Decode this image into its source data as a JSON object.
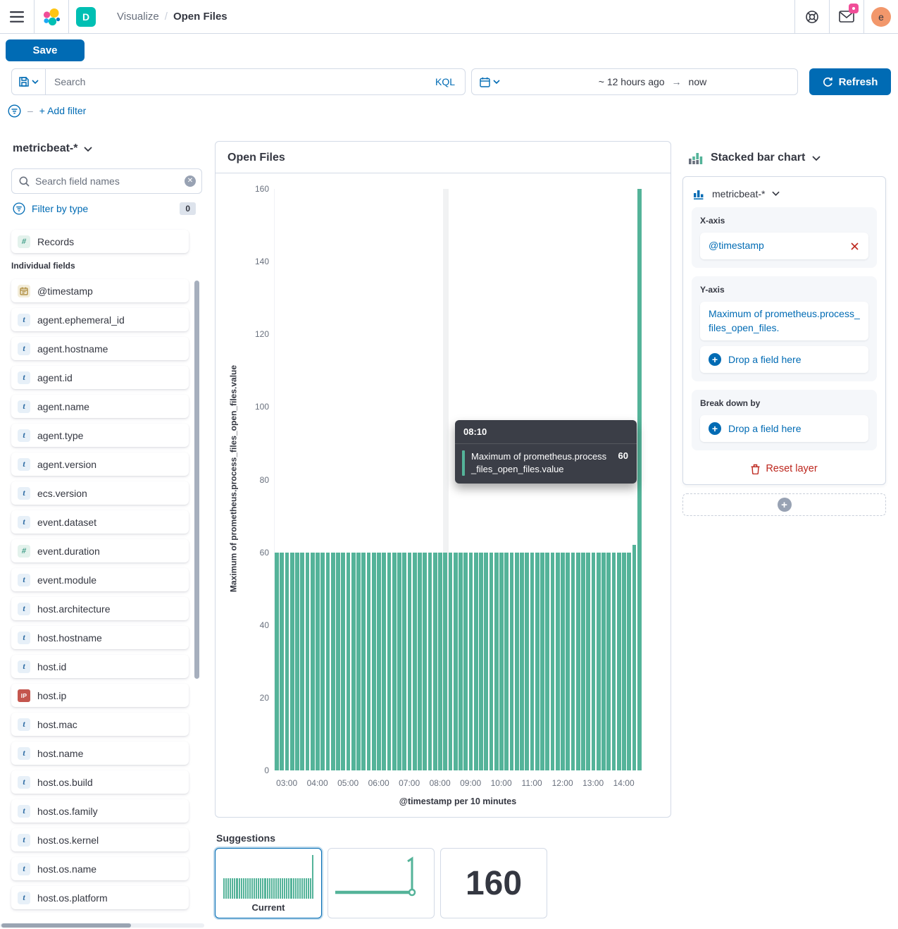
{
  "header": {
    "space_initial": "D",
    "breadcrumbs": [
      "Visualize",
      "Open Files"
    ],
    "breadcrumb_separator": "/",
    "avatar_initial": "e"
  },
  "toolbar": {
    "save_label": "Save",
    "search_placeholder": "Search",
    "kql_label": "KQL",
    "time_range": {
      "from": "~ 12 hours ago",
      "arrow": "→",
      "to": "now"
    },
    "refresh_label": "Refresh",
    "add_filter_dash": "–",
    "add_filter_label": "+ Add filter"
  },
  "sidebar": {
    "index_pattern": "metricbeat-*",
    "field_search_placeholder": "Search field names",
    "filter_by_type_label": "Filter by type",
    "filter_count": "0",
    "records_label": "Records",
    "section_label": "Individual fields",
    "fields": [
      {
        "name": "@timestamp",
        "type": "date"
      },
      {
        "name": "agent.ephemeral_id",
        "type": "string"
      },
      {
        "name": "agent.hostname",
        "type": "string"
      },
      {
        "name": "agent.id",
        "type": "string"
      },
      {
        "name": "agent.name",
        "type": "string"
      },
      {
        "name": "agent.type",
        "type": "string"
      },
      {
        "name": "agent.version",
        "type": "string"
      },
      {
        "name": "ecs.version",
        "type": "string"
      },
      {
        "name": "event.dataset",
        "type": "string"
      },
      {
        "name": "event.duration",
        "type": "number"
      },
      {
        "name": "event.module",
        "type": "string"
      },
      {
        "name": "host.architecture",
        "type": "string"
      },
      {
        "name": "host.hostname",
        "type": "string"
      },
      {
        "name": "host.id",
        "type": "string"
      },
      {
        "name": "host.ip",
        "type": "ip"
      },
      {
        "name": "host.mac",
        "type": "string"
      },
      {
        "name": "host.name",
        "type": "string"
      },
      {
        "name": "host.os.build",
        "type": "string"
      },
      {
        "name": "host.os.family",
        "type": "string"
      },
      {
        "name": "host.os.kernel",
        "type": "string"
      },
      {
        "name": "host.os.name",
        "type": "string"
      },
      {
        "name": "host.os.platform",
        "type": "string"
      }
    ]
  },
  "chart_panel": {
    "title": "Open Files"
  },
  "chart_data": {
    "type": "bar",
    "title": "Open Files",
    "xlabel": "@timestamp per 10 minutes",
    "ylabel": "Maximum of prometheus.process_files_open_files.value",
    "ylim": [
      0,
      160
    ],
    "y_ticks": [
      0,
      20,
      40,
      60,
      80,
      100,
      120,
      140,
      160
    ],
    "x_hour_ticks": [
      "03:00",
      "04:00",
      "05:00",
      "06:00",
      "07:00",
      "08:00",
      "09:00",
      "10:00",
      "11:00",
      "12:00",
      "13:00",
      "14:00"
    ],
    "grid": false,
    "legend": false,
    "bar_color": "#54B399",
    "hover_bucket": "08:10",
    "x": [
      "02:40",
      "02:50",
      "03:00",
      "03:10",
      "03:20",
      "03:30",
      "03:40",
      "03:50",
      "04:00",
      "04:10",
      "04:20",
      "04:30",
      "04:40",
      "04:50",
      "05:00",
      "05:10",
      "05:20",
      "05:30",
      "05:40",
      "05:50",
      "06:00",
      "06:10",
      "06:20",
      "06:30",
      "06:40",
      "06:50",
      "07:00",
      "07:10",
      "07:20",
      "07:30",
      "07:40",
      "07:50",
      "08:00",
      "08:10",
      "08:20",
      "08:30",
      "08:40",
      "08:50",
      "09:00",
      "09:10",
      "09:20",
      "09:30",
      "09:40",
      "09:50",
      "10:00",
      "10:10",
      "10:20",
      "10:30",
      "10:40",
      "10:50",
      "11:00",
      "11:10",
      "11:20",
      "11:30",
      "11:40",
      "11:50",
      "12:00",
      "12:10",
      "12:20",
      "12:30",
      "12:40",
      "12:50",
      "13:00",
      "13:10",
      "13:20",
      "13:30",
      "13:40",
      "13:50",
      "14:00",
      "14:10",
      "14:20",
      "14:30"
    ],
    "values": [
      60,
      60,
      60,
      60,
      60,
      60,
      60,
      60,
      60,
      60,
      60,
      60,
      60,
      60,
      60,
      60,
      60,
      60,
      60,
      60,
      60,
      60,
      60,
      60,
      60,
      60,
      60,
      60,
      60,
      60,
      60,
      60,
      60,
      60,
      60,
      60,
      60,
      60,
      60,
      60,
      60,
      60,
      60,
      60,
      60,
      60,
      60,
      60,
      60,
      60,
      60,
      60,
      60,
      60,
      60,
      60,
      60,
      60,
      60,
      60,
      60,
      60,
      60,
      60,
      60,
      60,
      60,
      60,
      60,
      60,
      62,
      160
    ]
  },
  "tooltip": {
    "time": "08:10",
    "series": "Maximum of prometheus.process_files_open_files.value",
    "value": "60",
    "marker_color": "#54B399"
  },
  "config_panel": {
    "chart_type_label": "Stacked bar chart",
    "layer": {
      "index_pattern": "metricbeat-*",
      "x_axis_label": "X-axis",
      "x_axis_value": "@timestamp",
      "y_axis_label": "Y-axis",
      "y_axis_value": "Maximum of prometheus.process_files_open_files.",
      "drop_field_label": "Drop a field here",
      "breakdown_label": "Break down by",
      "reset_layer_label": "Reset layer"
    }
  },
  "suggestions": {
    "label": "Suggestions",
    "current_label": "Current",
    "metric_value": "160"
  },
  "colors": {
    "primary": "#006BB4",
    "bar_green": "#54B399",
    "danger_red": "#BD271E",
    "badge_pink": "#F04E98",
    "space_teal": "#00BFB3",
    "avatar_orange": "#F2976B",
    "border": "#D3DAE6",
    "text": "#343741",
    "subdued_text": "#69707D"
  }
}
